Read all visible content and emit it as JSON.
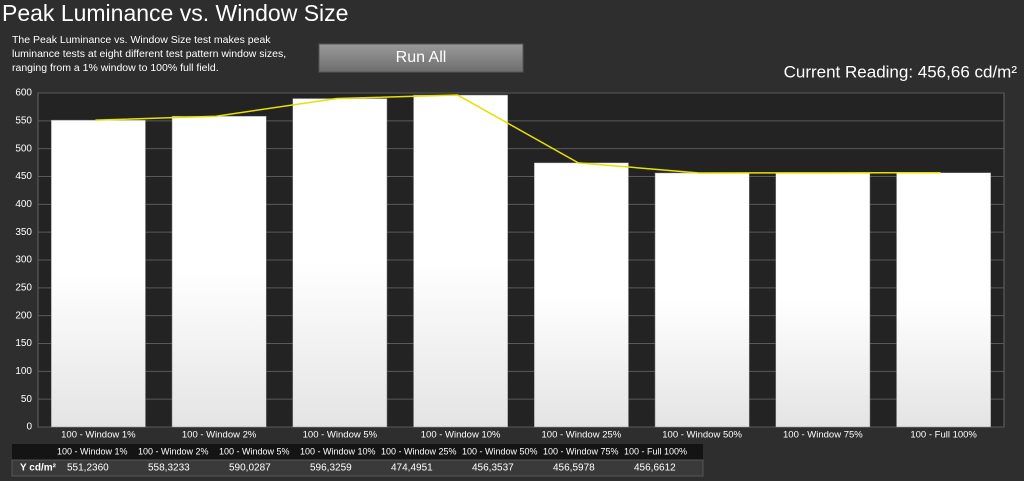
{
  "header": {
    "title": "Peak Luminance vs. Window Size",
    "description": "The Peak Luminance vs. Window Size test makes peak luminance tests at eight different test pattern window sizes, ranging from a 1% window to 100% full field.",
    "button": "Run All",
    "current_reading": "Current Reading: 456,66 cd/m²"
  },
  "chart_data": {
    "type": "bar",
    "categories": [
      "100 - Window  1%",
      "100 - Window  2%",
      "100 - Window  5%",
      "100 - Window 10%",
      "100 - Window 25%",
      "100 - Window 50%",
      "100 - Window 75%",
      "100 - Full  100%"
    ],
    "values": [
      551.236,
      558.3233,
      590.0287,
      596.3259,
      474.4951,
      456.3537,
      456.5978,
      456.6612
    ],
    "value_labels": [
      "551,2360",
      "558,3233",
      "590,0287",
      "596,3259",
      "474,4951",
      "456,3537",
      "456,5978",
      "456,6612"
    ],
    "color": "#ffffff",
    "line_color": "#e8e000",
    "ylim": [
      0,
      600
    ],
    "yticks": [
      0,
      50,
      100,
      150,
      200,
      250,
      300,
      350,
      400,
      450,
      500,
      550,
      600
    ],
    "grid": true,
    "table_row_label": "Y cd/m²"
  }
}
